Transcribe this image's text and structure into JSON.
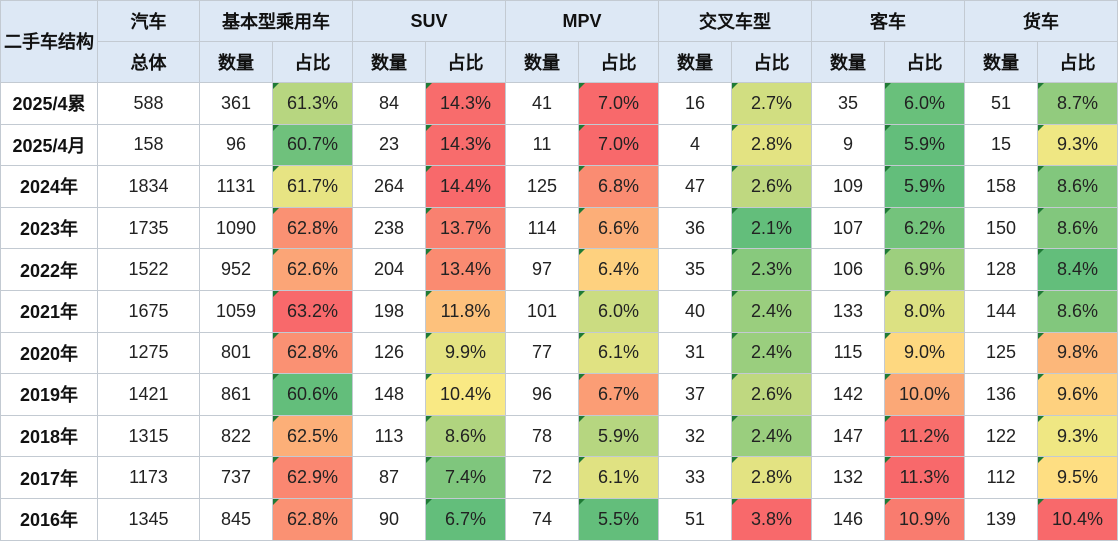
{
  "header": {
    "corner": "二手车结构",
    "auto_group": "汽车",
    "auto_sub": "总体",
    "groups": [
      "基本型乘用车",
      "SUV",
      "MPV",
      "交叉车型",
      "客车",
      "货车"
    ],
    "count_label": "数量",
    "share_label": "占比"
  },
  "colors": {
    "header_bg": "#dde8f5",
    "scale_low": "#63be7b",
    "scale_mid": "#ffeb84",
    "scale_high": "#f8696b"
  },
  "chart_data": {
    "type": "table",
    "columns": [
      "二手车结构",
      "汽车 总体",
      "基本型乘用车 数量",
      "基本型乘用车 占比",
      "SUV 数量",
      "SUV 占比",
      "MPV 数量",
      "MPV 占比",
      "交叉车型 数量",
      "交叉车型 占比",
      "客车 数量",
      "客车 占比",
      "货车 数量",
      "货车 占比"
    ],
    "rows": [
      {
        "label": "2025/4累",
        "total": "588",
        "cells": [
          [
            "361",
            "61.3%"
          ],
          [
            "84",
            "14.3%"
          ],
          [
            "41",
            "7.0%"
          ],
          [
            "16",
            "2.7%"
          ],
          [
            "35",
            "6.0%"
          ],
          [
            "51",
            "8.7%"
          ]
        ]
      },
      {
        "label": "2025/4月",
        "total": "158",
        "cells": [
          [
            "96",
            "60.7%"
          ],
          [
            "23",
            "14.3%"
          ],
          [
            "11",
            "7.0%"
          ],
          [
            "4",
            "2.8%"
          ],
          [
            "9",
            "5.9%"
          ],
          [
            "15",
            "9.3%"
          ]
        ]
      },
      {
        "label": "2024年",
        "total": "1834",
        "cells": [
          [
            "1131",
            "61.7%"
          ],
          [
            "264",
            "14.4%"
          ],
          [
            "125",
            "6.8%"
          ],
          [
            "47",
            "2.6%"
          ],
          [
            "109",
            "5.9%"
          ],
          [
            "158",
            "8.6%"
          ]
        ]
      },
      {
        "label": "2023年",
        "total": "1735",
        "cells": [
          [
            "1090",
            "62.8%"
          ],
          [
            "238",
            "13.7%"
          ],
          [
            "114",
            "6.6%"
          ],
          [
            "36",
            "2.1%"
          ],
          [
            "107",
            "6.2%"
          ],
          [
            "150",
            "8.6%"
          ]
        ]
      },
      {
        "label": "2022年",
        "total": "1522",
        "cells": [
          [
            "952",
            "62.6%"
          ],
          [
            "204",
            "13.4%"
          ],
          [
            "97",
            "6.4%"
          ],
          [
            "35",
            "2.3%"
          ],
          [
            "106",
            "6.9%"
          ],
          [
            "128",
            "8.4%"
          ]
        ]
      },
      {
        "label": "2021年",
        "total": "1675",
        "cells": [
          [
            "1059",
            "63.2%"
          ],
          [
            "198",
            "11.8%"
          ],
          [
            "101",
            "6.0%"
          ],
          [
            "40",
            "2.4%"
          ],
          [
            "133",
            "8.0%"
          ],
          [
            "144",
            "8.6%"
          ]
        ]
      },
      {
        "label": "2020年",
        "total": "1275",
        "cells": [
          [
            "801",
            "62.8%"
          ],
          [
            "126",
            "9.9%"
          ],
          [
            "77",
            "6.1%"
          ],
          [
            "31",
            "2.4%"
          ],
          [
            "115",
            "9.0%"
          ],
          [
            "125",
            "9.8%"
          ]
        ]
      },
      {
        "label": "2019年",
        "total": "1421",
        "cells": [
          [
            "861",
            "60.6%"
          ],
          [
            "148",
            "10.4%"
          ],
          [
            "96",
            "6.7%"
          ],
          [
            "37",
            "2.6%"
          ],
          [
            "142",
            "10.0%"
          ],
          [
            "136",
            "9.6%"
          ]
        ]
      },
      {
        "label": "2018年",
        "total": "1315",
        "cells": [
          [
            "822",
            "62.5%"
          ],
          [
            "113",
            "8.6%"
          ],
          [
            "78",
            "5.9%"
          ],
          [
            "32",
            "2.4%"
          ],
          [
            "147",
            "11.2%"
          ],
          [
            "122",
            "9.3%"
          ]
        ]
      },
      {
        "label": "2017年",
        "total": "1173",
        "cells": [
          [
            "737",
            "62.9%"
          ],
          [
            "87",
            "7.4%"
          ],
          [
            "72",
            "6.1%"
          ],
          [
            "33",
            "2.8%"
          ],
          [
            "132",
            "11.3%"
          ],
          [
            "112",
            "9.5%"
          ]
        ]
      },
      {
        "label": "2016年",
        "total": "1345",
        "cells": [
          [
            "845",
            "62.8%"
          ],
          [
            "90",
            "6.7%"
          ],
          [
            "74",
            "5.5%"
          ],
          [
            "51",
            "3.8%"
          ],
          [
            "146",
            "10.9%"
          ],
          [
            "139",
            "10.4%"
          ]
        ]
      }
    ]
  }
}
